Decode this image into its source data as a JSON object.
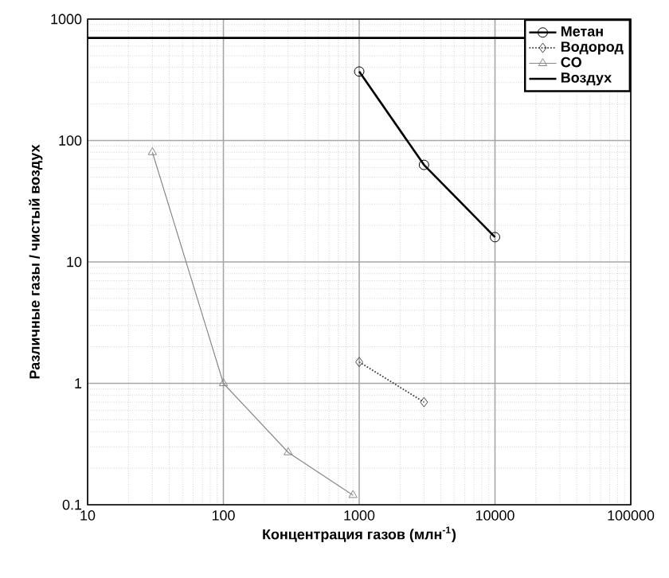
{
  "chart_data": {
    "type": "line",
    "xlabel": "Концентрация газов (млн$^{-1}$)",
    "ylabel": "Различные газы / чистый воздух",
    "log": "xy",
    "grid": true,
    "legend": "top right",
    "xlim": [
      10,
      100000
    ],
    "ylim": [
      0.1,
      1000
    ],
    "xticks": [
      10,
      100,
      1000,
      10000,
      100000
    ],
    "yticks": [
      0.1,
      1,
      10,
      100,
      1000
    ],
    "series": [
      {
        "name": "Метан",
        "color": "#000000",
        "marker": "circle",
        "line_style": "solid",
        "x": [
          1000,
          3000,
          10000
        ],
        "values": [
          370,
          63,
          16
        ]
      },
      {
        "name": "Водород",
        "color": "#444444",
        "marker": "diamond",
        "line_style": "dotted",
        "x": [
          1000,
          3000
        ],
        "values": [
          1.5,
          0.7
        ]
      },
      {
        "name": "CO",
        "color": "#888888",
        "marker": "triangle",
        "line_style": "solid",
        "x": [
          30,
          100,
          300,
          900
        ],
        "values": [
          80,
          1,
          0.27,
          0.12
        ]
      },
      {
        "name": "Воздух",
        "color": "#000000",
        "marker": "none",
        "line_style": "solid",
        "x": [
          10,
          100000
        ],
        "values": [
          700,
          700
        ]
      }
    ]
  }
}
